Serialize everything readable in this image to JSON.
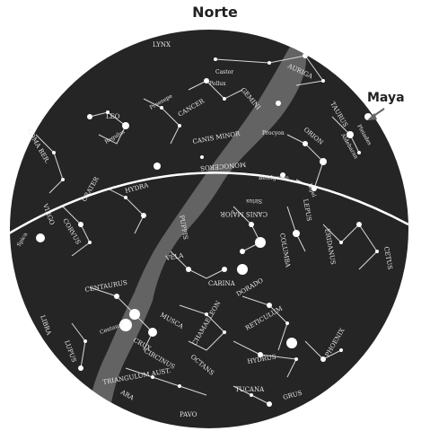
{
  "title": "Norte",
  "callout": "Maya",
  "colors": {
    "sky": "#252525",
    "milky_way": "#6f6f6f",
    "stars": "#ffffff",
    "lines": "#d9d9d9",
    "horizon": "#ffffff",
    "text_dark": "#222222"
  },
  "constellations": [
    "LYNX",
    "AURIGA",
    "GEMINI",
    "Castor",
    "Pollux",
    "Procyon",
    "CANCER",
    "Praesepe",
    "LEO",
    "Regulus",
    "COMA BER.",
    "CANIS MINOR",
    "ORION",
    "TAURUS",
    "Aldebaran",
    "Pleiades",
    "MONOCEROS",
    "HYDRA",
    "CRATER",
    "CORVUS",
    "VIRGO",
    "Spica",
    "Betelgeuse",
    "Rigel",
    "LEPUS",
    "CANIS MAJOR",
    "Sirius",
    "PUPPIS",
    "VELA",
    "COLUMBA",
    "ERIDANUS",
    "CETUS",
    "CARINA",
    "DORADO",
    "CENTAURUS",
    "LIBRA",
    "LUPUS",
    "MUSCA",
    "CRUX",
    "CIRCINUS",
    "CHAMAELEON",
    "RETICULUM",
    "OCTANS",
    "HYDRUS",
    "PHOENIX",
    "TRIANGULUM AUST.",
    "TUCANA",
    "GRUS",
    "ARA",
    "PAVO",
    "Centauri"
  ]
}
